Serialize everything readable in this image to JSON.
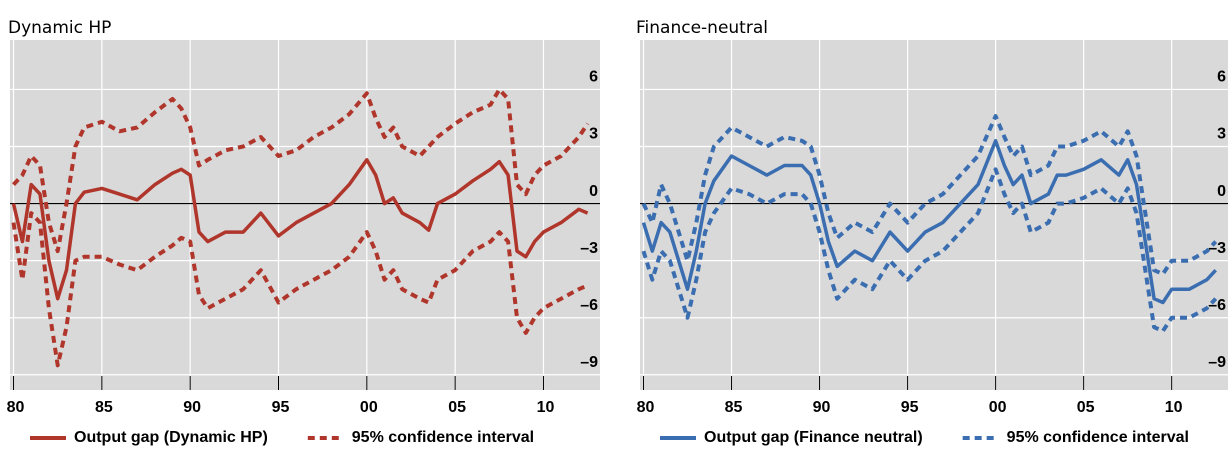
{
  "chart_data": [
    {
      "type": "line",
      "title": "Dynamic HP",
      "x": [
        1980,
        1980.5,
        1981,
        1981.5,
        1982,
        1982.5,
        1983,
        1983.5,
        1984,
        1985,
        1986,
        1987,
        1988,
        1989,
        1989.5,
        1990,
        1990.5,
        1991,
        1992,
        1993,
        1994,
        1995,
        1996,
        1997,
        1998,
        1999,
        2000,
        2000.5,
        2001,
        2001.5,
        2002,
        2003,
        2003.5,
        2004,
        2005,
        2006,
        2007,
        2007.5,
        2008,
        2008.5,
        2009,
        2009.5,
        2010,
        2011,
        2012,
        2012.5
      ],
      "series": [
        {
          "name": "Output gap (Dynamic HP)",
          "color": "#b0362c",
          "style": "solid",
          "values": [
            0,
            -2,
            1,
            0.5,
            -3,
            -5,
            -3.5,
            0,
            0.6,
            0.8,
            0.5,
            0.2,
            1,
            1.6,
            1.8,
            1.5,
            -1.5,
            -2,
            -1.5,
            -1.5,
            -0.5,
            -1.7,
            -1,
            -0.5,
            0,
            1,
            2.3,
            1.5,
            0,
            0.3,
            -0.5,
            -1,
            -1.4,
            0,
            0.5,
            1.2,
            1.8,
            2.2,
            1.5,
            -2.5,
            -2.8,
            -2,
            -1.5,
            -1,
            -0.3,
            -0.5
          ]
        },
        {
          "name": "95% confidence interval",
          "color": "#b0362c",
          "style": "dashed",
          "values": [
            1,
            1.5,
            2.5,
            2,
            -1,
            -2.5,
            0,
            3,
            4,
            4.3,
            3.8,
            4,
            4.8,
            5.5,
            5,
            4,
            2,
            2.3,
            2.8,
            3,
            3.5,
            2.5,
            2.8,
            3.5,
            4,
            4.7,
            5.8,
            4.5,
            3.5,
            4,
            3,
            2.5,
            3,
            3.5,
            4.2,
            4.8,
            5.2,
            6,
            5.5,
            1,
            0.5,
            1.5,
            2,
            2.5,
            3.5,
            4.2
          ]
        },
        {
          "color": "#b0362c",
          "style": "dashed",
          "values": [
            -1,
            -4,
            -0.5,
            -1,
            -5.5,
            -8.5,
            -6.5,
            -3,
            -2.8,
            -2.8,
            -3.2,
            -3.5,
            -2.8,
            -2.2,
            -1.8,
            -2,
            -4.8,
            -5.5,
            -5,
            -4.5,
            -3.5,
            -5.2,
            -4.5,
            -4,
            -3.5,
            -2.8,
            -1.5,
            -2.5,
            -4,
            -3.5,
            -4.5,
            -5,
            -5.2,
            -4,
            -3.5,
            -2.5,
            -2,
            -1.5,
            -2,
            -6,
            -6.8,
            -6,
            -5.5,
            -5,
            -4.5,
            -4.3
          ]
        }
      ],
      "xlim": [
        1979.8,
        2013.2
      ],
      "ylim": [
        -9.8,
        8.6
      ],
      "xticks": [
        {
          "value": 1980,
          "label": "80"
        },
        {
          "value": 1985,
          "label": "85"
        },
        {
          "value": 1990,
          "label": "90"
        },
        {
          "value": 1995,
          "label": "95"
        },
        {
          "value": 2000,
          "label": "00"
        },
        {
          "value": 2005,
          "label": "05"
        },
        {
          "value": 2010,
          "label": "10"
        }
      ],
      "yticks": [
        {
          "value": -9,
          "label": "–9"
        },
        {
          "value": -6,
          "label": "–6"
        },
        {
          "value": -3,
          "label": "–3"
        },
        0,
        3,
        6
      ],
      "grid": true,
      "legend": "bottom"
    },
    {
      "type": "line",
      "title": "Finance-neutral",
      "x": [
        1980,
        1980.5,
        1981,
        1981.5,
        1982,
        1982.5,
        1983,
        1983.5,
        1984,
        1985,
        1986,
        1987,
        1988,
        1989,
        1989.5,
        1990,
        1990.5,
        1991,
        1992,
        1993,
        1994,
        1995,
        1996,
        1997,
        1998,
        1999,
        2000,
        2000.5,
        2001,
        2001.5,
        2002,
        2003,
        2003.5,
        2004,
        2005,
        2006,
        2007,
        2007.5,
        2008,
        2008.5,
        2009,
        2009.5,
        2010,
        2011,
        2012,
        2012.5
      ],
      "series": [
        {
          "name": "Output gap (Finance neutral)",
          "color": "#3b6eb0",
          "style": "solid",
          "values": [
            -1,
            -2.5,
            -1,
            -1.5,
            -3,
            -4.5,
            -2.5,
            0,
            1.2,
            2.5,
            2,
            1.5,
            2,
            2,
            1.5,
            0,
            -2,
            -3.3,
            -2.5,
            -3,
            -1.5,
            -2.5,
            -1.5,
            -1,
            0,
            1,
            3.3,
            2,
            1,
            1.5,
            0,
            0.5,
            1.5,
            1.5,
            1.8,
            2.3,
            1.5,
            2.3,
            1,
            -2,
            -5,
            -5.2,
            -4.5,
            -4.5,
            -4,
            -3.5
          ]
        },
        {
          "name": "95% confidence interval",
          "color": "#3b6eb0",
          "style": "dashed",
          "values": [
            0,
            -1,
            1,
            0,
            -1.5,
            -3,
            -1,
            1.5,
            3,
            4,
            3.5,
            3,
            3.5,
            3.3,
            3,
            1.5,
            -0.5,
            -1.8,
            -1,
            -1.5,
            0,
            -1,
            0,
            0.5,
            1.5,
            2.5,
            4.6,
            3.5,
            2.5,
            3,
            1.5,
            2,
            3,
            3,
            3.3,
            3.8,
            3,
            3.8,
            2.5,
            -0.5,
            -3.5,
            -3.7,
            -3,
            -3,
            -2.5,
            -2
          ]
        },
        {
          "color": "#3b6eb0",
          "style": "dashed",
          "values": [
            -2.5,
            -4,
            -2.5,
            -3,
            -4.5,
            -6,
            -4,
            -1.5,
            -0.5,
            0.8,
            0.5,
            0,
            0.5,
            0.5,
            0,
            -1.5,
            -3.5,
            -5,
            -4,
            -4.5,
            -3,
            -4,
            -3,
            -2.5,
            -1.5,
            -0.5,
            1.8,
            0.5,
            -0.5,
            0,
            -1.5,
            -1,
            0,
            0,
            0.3,
            0.8,
            0,
            0.8,
            -0.5,
            -3.5,
            -6.5,
            -6.7,
            -6,
            -6,
            -5.5,
            -5
          ]
        }
      ],
      "xlim": [
        1979.8,
        2013.2
      ],
      "ylim": [
        -9.8,
        8.6
      ],
      "xticks": [
        {
          "value": 1980,
          "label": "80"
        },
        {
          "value": 1985,
          "label": "85"
        },
        {
          "value": 1990,
          "label": "90"
        },
        {
          "value": 1995,
          "label": "95"
        },
        {
          "value": 2000,
          "label": "00"
        },
        {
          "value": 2005,
          "label": "05"
        },
        {
          "value": 2010,
          "label": "10"
        }
      ],
      "yticks": [
        {
          "value": -9,
          "label": "–9"
        },
        {
          "value": -6,
          "label": "–6"
        },
        {
          "value": -3,
          "label": "–3"
        },
        0,
        3,
        6
      ],
      "grid": true,
      "legend": "bottom"
    }
  ]
}
